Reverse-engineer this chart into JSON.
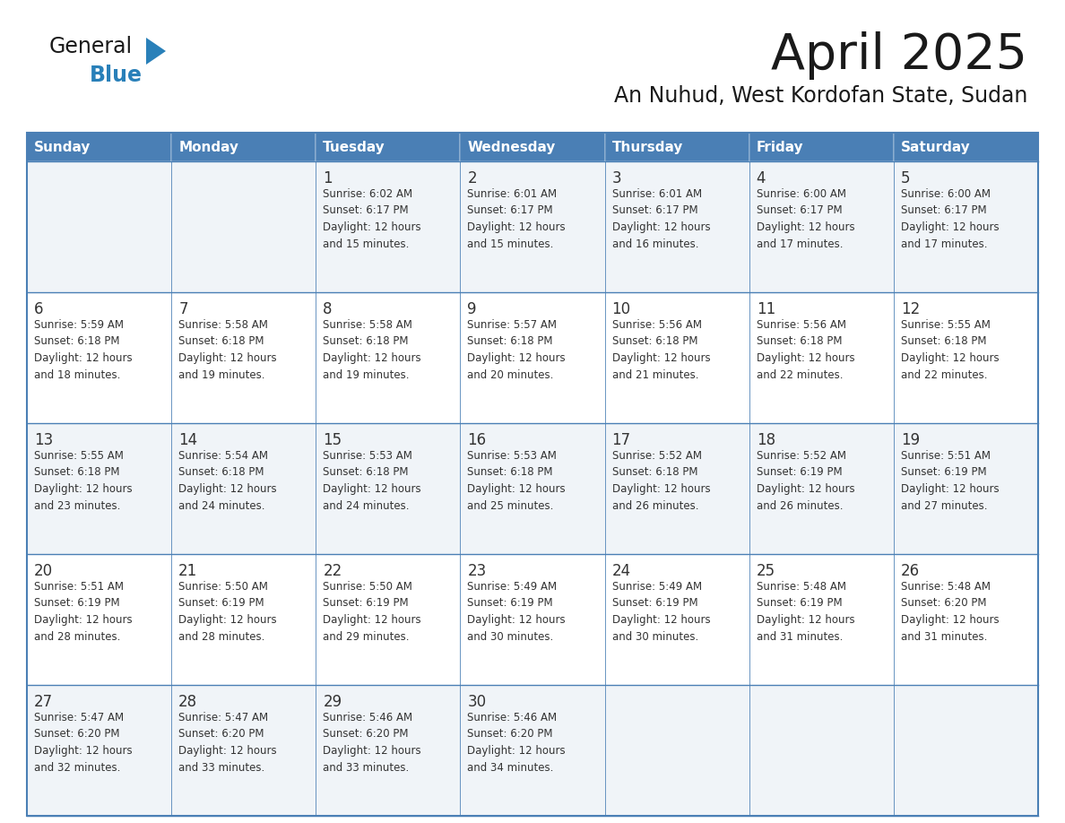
{
  "title": "April 2025",
  "subtitle": "An Nuhud, West Kordofan State, Sudan",
  "days_of_week": [
    "Sunday",
    "Monday",
    "Tuesday",
    "Wednesday",
    "Thursday",
    "Friday",
    "Saturday"
  ],
  "header_bg": "#4a7fb5",
  "header_text": "#ffffff",
  "row_bg_odd": "#f0f4f8",
  "row_bg_even": "#ffffff",
  "border_color": "#4a7fb5",
  "text_color": "#333333",
  "logo_general_color": "#1a1a1a",
  "logo_blue_color": "#2980b9",
  "logo_triangle_color": "#2980b9",
  "weeks": [
    [
      {
        "day": null,
        "info": null
      },
      {
        "day": null,
        "info": null
      },
      {
        "day": 1,
        "info": "Sunrise: 6:02 AM\nSunset: 6:17 PM\nDaylight: 12 hours\nand 15 minutes."
      },
      {
        "day": 2,
        "info": "Sunrise: 6:01 AM\nSunset: 6:17 PM\nDaylight: 12 hours\nand 15 minutes."
      },
      {
        "day": 3,
        "info": "Sunrise: 6:01 AM\nSunset: 6:17 PM\nDaylight: 12 hours\nand 16 minutes."
      },
      {
        "day": 4,
        "info": "Sunrise: 6:00 AM\nSunset: 6:17 PM\nDaylight: 12 hours\nand 17 minutes."
      },
      {
        "day": 5,
        "info": "Sunrise: 6:00 AM\nSunset: 6:17 PM\nDaylight: 12 hours\nand 17 minutes."
      }
    ],
    [
      {
        "day": 6,
        "info": "Sunrise: 5:59 AM\nSunset: 6:18 PM\nDaylight: 12 hours\nand 18 minutes."
      },
      {
        "day": 7,
        "info": "Sunrise: 5:58 AM\nSunset: 6:18 PM\nDaylight: 12 hours\nand 19 minutes."
      },
      {
        "day": 8,
        "info": "Sunrise: 5:58 AM\nSunset: 6:18 PM\nDaylight: 12 hours\nand 19 minutes."
      },
      {
        "day": 9,
        "info": "Sunrise: 5:57 AM\nSunset: 6:18 PM\nDaylight: 12 hours\nand 20 minutes."
      },
      {
        "day": 10,
        "info": "Sunrise: 5:56 AM\nSunset: 6:18 PM\nDaylight: 12 hours\nand 21 minutes."
      },
      {
        "day": 11,
        "info": "Sunrise: 5:56 AM\nSunset: 6:18 PM\nDaylight: 12 hours\nand 22 minutes."
      },
      {
        "day": 12,
        "info": "Sunrise: 5:55 AM\nSunset: 6:18 PM\nDaylight: 12 hours\nand 22 minutes."
      }
    ],
    [
      {
        "day": 13,
        "info": "Sunrise: 5:55 AM\nSunset: 6:18 PM\nDaylight: 12 hours\nand 23 minutes."
      },
      {
        "day": 14,
        "info": "Sunrise: 5:54 AM\nSunset: 6:18 PM\nDaylight: 12 hours\nand 24 minutes."
      },
      {
        "day": 15,
        "info": "Sunrise: 5:53 AM\nSunset: 6:18 PM\nDaylight: 12 hours\nand 24 minutes."
      },
      {
        "day": 16,
        "info": "Sunrise: 5:53 AM\nSunset: 6:18 PM\nDaylight: 12 hours\nand 25 minutes."
      },
      {
        "day": 17,
        "info": "Sunrise: 5:52 AM\nSunset: 6:18 PM\nDaylight: 12 hours\nand 26 minutes."
      },
      {
        "day": 18,
        "info": "Sunrise: 5:52 AM\nSunset: 6:19 PM\nDaylight: 12 hours\nand 26 minutes."
      },
      {
        "day": 19,
        "info": "Sunrise: 5:51 AM\nSunset: 6:19 PM\nDaylight: 12 hours\nand 27 minutes."
      }
    ],
    [
      {
        "day": 20,
        "info": "Sunrise: 5:51 AM\nSunset: 6:19 PM\nDaylight: 12 hours\nand 28 minutes."
      },
      {
        "day": 21,
        "info": "Sunrise: 5:50 AM\nSunset: 6:19 PM\nDaylight: 12 hours\nand 28 minutes."
      },
      {
        "day": 22,
        "info": "Sunrise: 5:50 AM\nSunset: 6:19 PM\nDaylight: 12 hours\nand 29 minutes."
      },
      {
        "day": 23,
        "info": "Sunrise: 5:49 AM\nSunset: 6:19 PM\nDaylight: 12 hours\nand 30 minutes."
      },
      {
        "day": 24,
        "info": "Sunrise: 5:49 AM\nSunset: 6:19 PM\nDaylight: 12 hours\nand 30 minutes."
      },
      {
        "day": 25,
        "info": "Sunrise: 5:48 AM\nSunset: 6:19 PM\nDaylight: 12 hours\nand 31 minutes."
      },
      {
        "day": 26,
        "info": "Sunrise: 5:48 AM\nSunset: 6:20 PM\nDaylight: 12 hours\nand 31 minutes."
      }
    ],
    [
      {
        "day": 27,
        "info": "Sunrise: 5:47 AM\nSunset: 6:20 PM\nDaylight: 12 hours\nand 32 minutes."
      },
      {
        "day": 28,
        "info": "Sunrise: 5:47 AM\nSunset: 6:20 PM\nDaylight: 12 hours\nand 33 minutes."
      },
      {
        "day": 29,
        "info": "Sunrise: 5:46 AM\nSunset: 6:20 PM\nDaylight: 12 hours\nand 33 minutes."
      },
      {
        "day": 30,
        "info": "Sunrise: 5:46 AM\nSunset: 6:20 PM\nDaylight: 12 hours\nand 34 minutes."
      },
      {
        "day": null,
        "info": null
      },
      {
        "day": null,
        "info": null
      },
      {
        "day": null,
        "info": null
      }
    ]
  ]
}
